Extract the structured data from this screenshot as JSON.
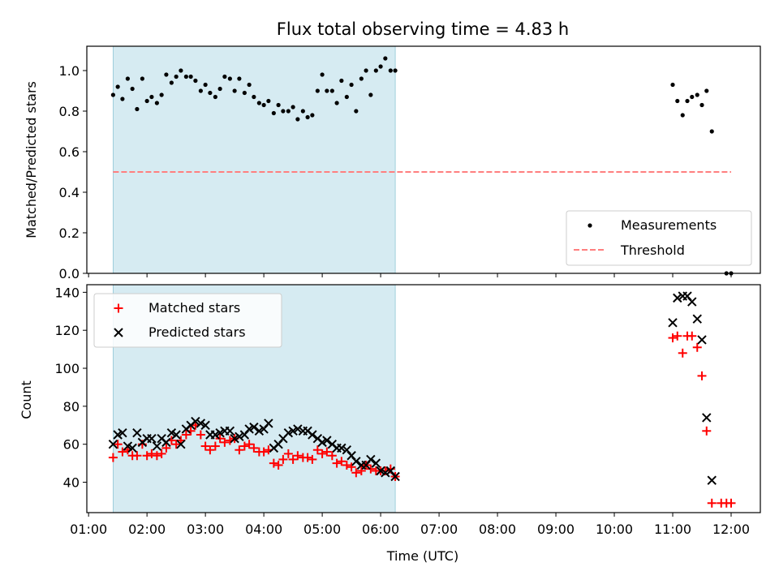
{
  "title": "Flux total observing time = 4.83 h",
  "colors": {
    "shade": "#add8e6",
    "threshold": "#ff7f7f",
    "measurement": "#000000",
    "matched": "#ff0000",
    "predicted": "#000000"
  },
  "chart_data": [
    {
      "type": "scatter",
      "panel": "top",
      "ylabel": "Matched/Predicted stars",
      "xlim": [
        0.97,
        12.5
      ],
      "ylim": [
        0.0,
        1.12
      ],
      "yticks": [
        0.0,
        0.2,
        0.4,
        0.6,
        0.8,
        1.0
      ],
      "ytick_labels": [
        "0.0",
        "0.2",
        "0.4",
        "0.6",
        "0.8",
        "1.0"
      ],
      "shaded_interval": [
        1.42,
        6.25
      ],
      "legend": {
        "placement": "lower-right",
        "entries": [
          "Measurements",
          "Threshold"
        ]
      },
      "threshold": {
        "name": "Threshold",
        "y": 0.5,
        "x": [
          1.42,
          12.0
        ]
      },
      "series": [
        {
          "name": "Measurements",
          "x": [
            1.42,
            1.5,
            1.58,
            1.67,
            1.75,
            1.83,
            1.92,
            2.0,
            2.08,
            2.17,
            2.25,
            2.33,
            2.42,
            2.5,
            2.58,
            2.67,
            2.75,
            2.83,
            2.92,
            3.0,
            3.08,
            3.17,
            3.25,
            3.33,
            3.42,
            3.5,
            3.58,
            3.67,
            3.75,
            3.83,
            3.92,
            4.0,
            4.08,
            4.17,
            4.25,
            4.33,
            4.42,
            4.5,
            4.58,
            4.67,
            4.75,
            4.83,
            4.92,
            5.0,
            5.08,
            5.17,
            5.25,
            5.33,
            5.42,
            5.5,
            5.58,
            5.67,
            5.75,
            5.83,
            5.92,
            6.0,
            6.08,
            6.17,
            6.25,
            11.0,
            11.08,
            11.17,
            11.25,
            11.33,
            11.42,
            11.5,
            11.58,
            11.67,
            11.92,
            12.0
          ],
          "y": [
            0.88,
            0.92,
            0.86,
            0.96,
            0.91,
            0.81,
            0.96,
            0.85,
            0.87,
            0.84,
            0.88,
            0.98,
            0.94,
            0.97,
            1.0,
            0.97,
            0.97,
            0.95,
            0.9,
            0.93,
            0.89,
            0.87,
            0.91,
            0.97,
            0.96,
            0.9,
            0.96,
            0.89,
            0.93,
            0.87,
            0.84,
            0.83,
            0.85,
            0.79,
            0.83,
            0.8,
            0.8,
            0.82,
            0.76,
            0.8,
            0.77,
            0.78,
            0.9,
            0.98,
            0.9,
            0.9,
            0.84,
            0.95,
            0.87,
            0.93,
            0.8,
            0.96,
            1.0,
            0.88,
            1.0,
            1.02,
            1.06,
            1.0,
            1.0,
            0.93,
            0.85,
            0.78,
            0.85,
            0.87,
            0.88,
            0.83,
            0.9,
            0.7,
            0.0,
            0.0
          ]
        }
      ]
    },
    {
      "type": "scatter",
      "panel": "bottom",
      "xlabel": "Time (UTC)",
      "ylabel": "Count",
      "xlim": [
        0.97,
        12.5
      ],
      "ylim": [
        24,
        144
      ],
      "yticks": [
        40,
        60,
        80,
        100,
        120,
        140
      ],
      "ytick_labels": [
        "40",
        "60",
        "80",
        "100",
        "120",
        "140"
      ],
      "xticks": [
        1,
        2,
        3,
        4,
        5,
        6,
        7,
        8,
        9,
        10,
        11,
        12
      ],
      "xtick_labels": [
        "01:00",
        "02:00",
        "03:00",
        "04:00",
        "05:00",
        "06:00",
        "07:00",
        "08:00",
        "09:00",
        "10:00",
        "11:00",
        "12:00"
      ],
      "shaded_interval": [
        1.42,
        6.25
      ],
      "legend": {
        "placement": "upper-left",
        "entries": [
          "Matched stars",
          "Predicted stars"
        ]
      },
      "series": [
        {
          "name": "Matched stars",
          "x": [
            1.42,
            1.5,
            1.58,
            1.67,
            1.75,
            1.83,
            1.92,
            2.0,
            2.08,
            2.17,
            2.25,
            2.33,
            2.42,
            2.5,
            2.58,
            2.67,
            2.75,
            2.83,
            2.92,
            3.0,
            3.08,
            3.17,
            3.25,
            3.33,
            3.42,
            3.5,
            3.58,
            3.67,
            3.75,
            3.83,
            3.92,
            4.0,
            4.08,
            4.17,
            4.25,
            4.33,
            4.42,
            4.5,
            4.58,
            4.67,
            4.75,
            4.83,
            4.92,
            5.0,
            5.08,
            5.17,
            5.25,
            5.33,
            5.42,
            5.5,
            5.58,
            5.67,
            5.75,
            5.83,
            5.92,
            6.0,
            6.08,
            6.17,
            6.25,
            11.0,
            11.08,
            11.17,
            11.25,
            11.33,
            11.42,
            11.5,
            11.58,
            11.67,
            11.83,
            11.92,
            12.0
          ],
          "y": [
            53,
            60,
            56,
            57,
            54,
            54,
            60,
            54,
            55,
            54,
            55,
            58,
            62,
            60,
            62,
            65,
            67,
            70,
            65,
            59,
            57,
            59,
            63,
            61,
            62,
            63,
            57,
            59,
            60,
            58,
            56,
            56,
            57,
            50,
            49,
            52,
            55,
            52,
            54,
            53,
            53,
            52,
            57,
            55,
            56,
            54,
            50,
            51,
            49,
            48,
            45,
            46,
            49,
            47,
            46,
            46,
            46,
            47,
            43,
            116,
            117,
            108,
            117,
            117,
            111,
            96,
            67,
            29,
            29,
            29,
            29
          ]
        },
        {
          "name": "Predicted stars",
          "x": [
            1.42,
            1.5,
            1.58,
            1.67,
            1.75,
            1.83,
            1.92,
            2.0,
            2.08,
            2.17,
            2.25,
            2.33,
            2.42,
            2.5,
            2.58,
            2.67,
            2.75,
            2.83,
            2.92,
            3.0,
            3.08,
            3.17,
            3.25,
            3.33,
            3.42,
            3.5,
            3.58,
            3.67,
            3.75,
            3.83,
            3.92,
            4.0,
            4.08,
            4.17,
            4.25,
            4.33,
            4.42,
            4.5,
            4.58,
            4.67,
            4.75,
            4.83,
            4.92,
            5.0,
            5.08,
            5.17,
            5.25,
            5.33,
            5.42,
            5.5,
            5.58,
            5.67,
            5.75,
            5.83,
            5.92,
            6.0,
            6.08,
            6.17,
            6.25,
            11.0,
            11.08,
            11.17,
            11.25,
            11.33,
            11.42,
            11.5,
            11.58,
            11.67
          ],
          "y": [
            60,
            65,
            66,
            59,
            58,
            66,
            61,
            63,
            63,
            59,
            63,
            61,
            66,
            65,
            60,
            68,
            70,
            72,
            71,
            70,
            65,
            65,
            66,
            67,
            67,
            63,
            64,
            65,
            68,
            69,
            67,
            68,
            71,
            58,
            60,
            63,
            66,
            67,
            68,
            67,
            67,
            65,
            63,
            61,
            62,
            60,
            58,
            58,
            57,
            54,
            51,
            49,
            49,
            52,
            50,
            46,
            45,
            46,
            43,
            124,
            137,
            138,
            138,
            135,
            126,
            115,
            74,
            41
          ]
        }
      ]
    }
  ]
}
